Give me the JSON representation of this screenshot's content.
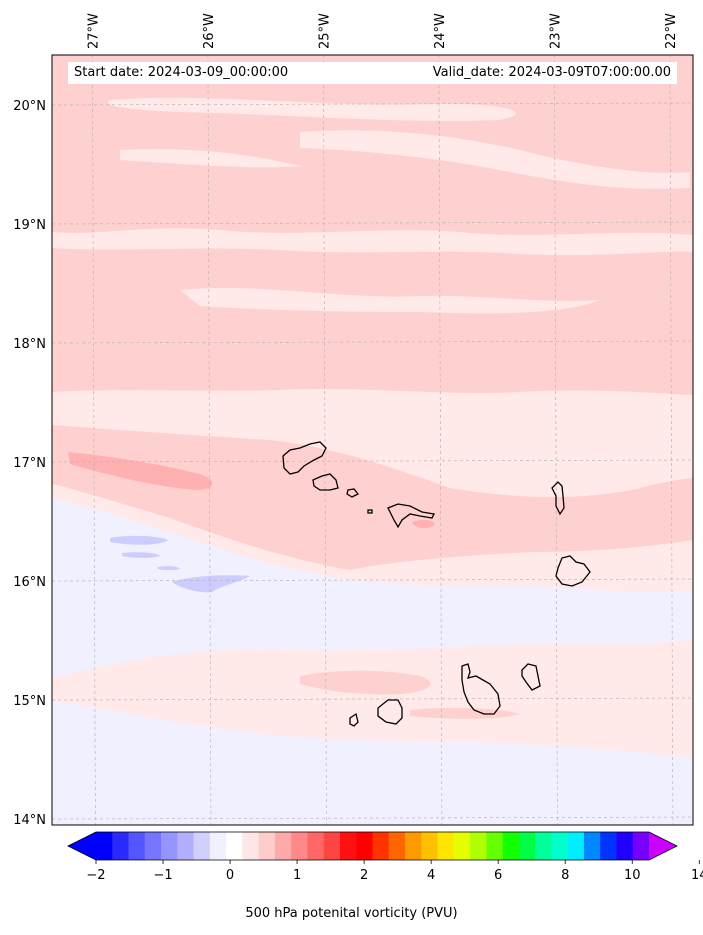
{
  "map": {
    "start_label": "Start date: 2024-03-09_00:00:00",
    "valid_label": "Valid_date: 2024-03-09T07:00:00.00",
    "lon_labels": [
      "27°W",
      "26°W",
      "25°W",
      "24°W",
      "23°W",
      "22°W"
    ],
    "lat_labels": [
      "20°N",
      "19°N",
      "18°N",
      "17°N",
      "16°N",
      "15°N",
      "14°N"
    ],
    "lon_range": [
      -27.35,
      -21.8
    ],
    "lat_range": [
      13.95,
      20.42
    ]
  },
  "colorbar": {
    "title": "500 hPa potenital vorticity (PVU)",
    "tick_labels": [
      "−2",
      "−1",
      "0",
      "1",
      "2",
      "4",
      "6",
      "8",
      "10",
      "14"
    ],
    "colors": [
      "#0000ff",
      "#2a2aff",
      "#5555ff",
      "#7575ff",
      "#9595ff",
      "#b0b0ff",
      "#d0d0ff",
      "#f0f0ff",
      "#ffffff",
      "#ffe6e6",
      "#ffcccc",
      "#ffaaaa",
      "#ff8888",
      "#ff6666",
      "#ff4444",
      "#ff1111",
      "#ff0000",
      "#ff3300",
      "#ff6600",
      "#ff9900",
      "#ffc000",
      "#ffe600",
      "#e6ff00",
      "#b0ff00",
      "#66ff00",
      "#11ff00",
      "#00ff44",
      "#00ff99",
      "#00ffcc",
      "#00eeff",
      "#0088ff",
      "#0033ff",
      "#2200ff",
      "#7700ff"
    ],
    "under_color": "#0000ff",
    "over_color": "#cc00ff"
  },
  "fields": {
    "background": "#ffe9e9",
    "light_pink": "#ffd0d0",
    "pink": "#ffb0b0",
    "pale_blue": "#f0f0ff",
    "light_blue": "#ccccff"
  }
}
